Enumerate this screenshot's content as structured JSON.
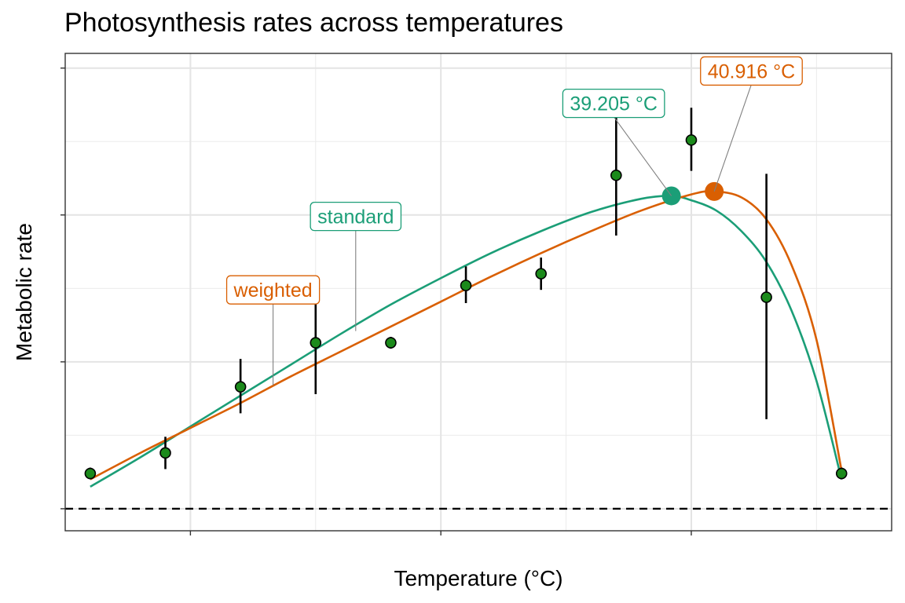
{
  "chart_data": {
    "type": "scatter",
    "title": "Photosynthesis rates across temperatures",
    "xlabel": "Temperature (°C)",
    "ylabel": "Metabolic rate",
    "xlim": [
      15,
      48
    ],
    "ylim": [
      -0.15,
      3.1
    ],
    "x_ticks": [
      20,
      30,
      40
    ],
    "y_ticks": [
      0,
      1,
      2,
      3
    ],
    "grid": true,
    "reference_line": {
      "y": 0,
      "style": "dashed"
    },
    "points": [
      {
        "x": 16,
        "y": 0.24,
        "ymin": 0.2,
        "ymax": 0.28
      },
      {
        "x": 19,
        "y": 0.38,
        "ymin": 0.27,
        "ymax": 0.49
      },
      {
        "x": 22,
        "y": 0.83,
        "ymin": 0.65,
        "ymax": 1.02
      },
      {
        "x": 25,
        "y": 1.13,
        "ymin": 0.78,
        "ymax": 1.48
      },
      {
        "x": 28,
        "y": 1.13,
        "ymin": 1.09,
        "ymax": 1.17
      },
      {
        "x": 31,
        "y": 1.52,
        "ymin": 1.4,
        "ymax": 1.65
      },
      {
        "x": 34,
        "y": 1.6,
        "ymin": 1.49,
        "ymax": 1.71
      },
      {
        "x": 37,
        "y": 2.27,
        "ymin": 1.86,
        "ymax": 2.7
      },
      {
        "x": 40,
        "y": 2.51,
        "ymin": 2.3,
        "ymax": 2.73
      },
      {
        "x": 43,
        "y": 1.44,
        "ymin": 0.61,
        "ymax": 2.28
      },
      {
        "x": 46,
        "y": 0.24,
        "ymin": 0.2,
        "ymax": 0.28
      }
    ],
    "series": [
      {
        "name": "standard",
        "color": "#1b9e77",
        "points": [
          [
            16,
            0.15
          ],
          [
            18,
            0.35
          ],
          [
            20,
            0.56
          ],
          [
            22,
            0.77
          ],
          [
            24,
            0.98
          ],
          [
            26,
            1.19
          ],
          [
            28,
            1.39
          ],
          [
            30,
            1.57
          ],
          [
            32,
            1.74
          ],
          [
            34,
            1.89
          ],
          [
            36,
            2.02
          ],
          [
            38,
            2.11
          ],
          [
            39.205,
            2.13
          ],
          [
            40,
            2.1
          ],
          [
            41,
            2.03
          ],
          [
            42,
            1.89
          ],
          [
            43,
            1.68
          ],
          [
            44,
            1.35
          ],
          [
            45,
            0.87
          ],
          [
            46,
            0.2
          ]
        ],
        "optimum": {
          "x": 39.205,
          "y": 2.13,
          "label": "39.205 °C"
        }
      },
      {
        "name": "weighted",
        "color": "#d95f02",
        "points": [
          [
            16,
            0.2
          ],
          [
            18,
            0.38
          ],
          [
            20,
            0.55
          ],
          [
            22,
            0.72
          ],
          [
            24,
            0.9
          ],
          [
            26,
            1.07
          ],
          [
            28,
            1.24
          ],
          [
            30,
            1.41
          ],
          [
            32,
            1.58
          ],
          [
            34,
            1.74
          ],
          [
            36,
            1.89
          ],
          [
            38,
            2.03
          ],
          [
            40,
            2.14
          ],
          [
            40.916,
            2.16
          ],
          [
            42,
            2.12
          ],
          [
            43,
            1.97
          ],
          [
            44,
            1.66
          ],
          [
            45,
            1.15
          ],
          [
            46,
            0.26
          ]
        ],
        "optimum": {
          "x": 40.916,
          "y": 2.16,
          "label": "40.916 °C"
        }
      }
    ],
    "annotations": [
      {
        "text": "standard",
        "series": "standard",
        "color": "#1b9e77",
        "label_at": [
          26.6,
          1.99
        ],
        "point_at": [
          26.6,
          1.21
        ]
      },
      {
        "text": "weighted",
        "series": "weighted",
        "color": "#d95f02",
        "label_at": [
          23.3,
          1.49
        ],
        "point_at": [
          23.3,
          0.84
        ]
      },
      {
        "text": "39.205 °C",
        "series": "standard",
        "color": "#1b9e77",
        "label_at": [
          36.9,
          2.76
        ],
        "point_at": [
          39.205,
          2.13
        ]
      },
      {
        "text": "40.916 °C",
        "series": "weighted",
        "color": "#d95f02",
        "label_at": [
          42.4,
          2.98
        ],
        "point_at": [
          40.916,
          2.16
        ]
      }
    ]
  }
}
